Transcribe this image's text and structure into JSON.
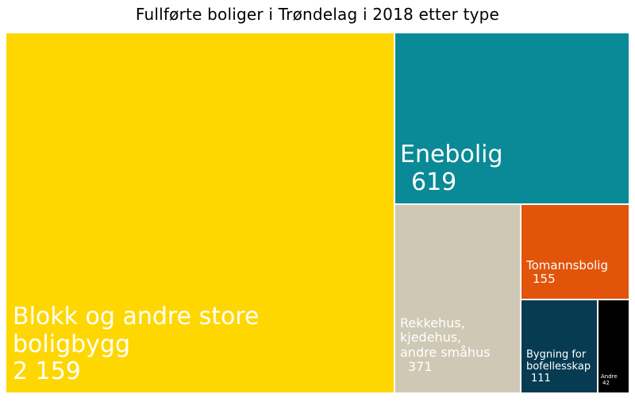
{
  "chart_data": {
    "type": "treemap",
    "title": "Fullførte boliger i Trøndelag i 2018 etter type",
    "items": [
      {
        "label": "Blokk og andre store\nboligbygg",
        "value": 2159,
        "value_label": "2 159",
        "color": "#FFD700",
        "text_color": "#FFFFFF"
      },
      {
        "label": "Enebolig",
        "value": 619,
        "value_label": "619",
        "color": "#0A8A96",
        "text_color": "#FFFFFF"
      },
      {
        "label": "Rekkehus,\nkjedehus,\nandre småhus",
        "value": 371,
        "value_label": "371",
        "color": "#CFC8B4",
        "text_color": "#FFFFFF"
      },
      {
        "label": "Tomannsbolig",
        "value": 155,
        "value_label": "155",
        "color": "#E2540A",
        "text_color": "#FFFFFF"
      },
      {
        "label": "Bygning for\nbofellesskap",
        "value": 111,
        "value_label": "111",
        "color": "#073B52",
        "text_color": "#FFFFFF"
      },
      {
        "label": "Andre",
        "value": 42,
        "value_label": "42",
        "color": "#000000",
        "text_color": "#FFFFFF"
      }
    ]
  }
}
